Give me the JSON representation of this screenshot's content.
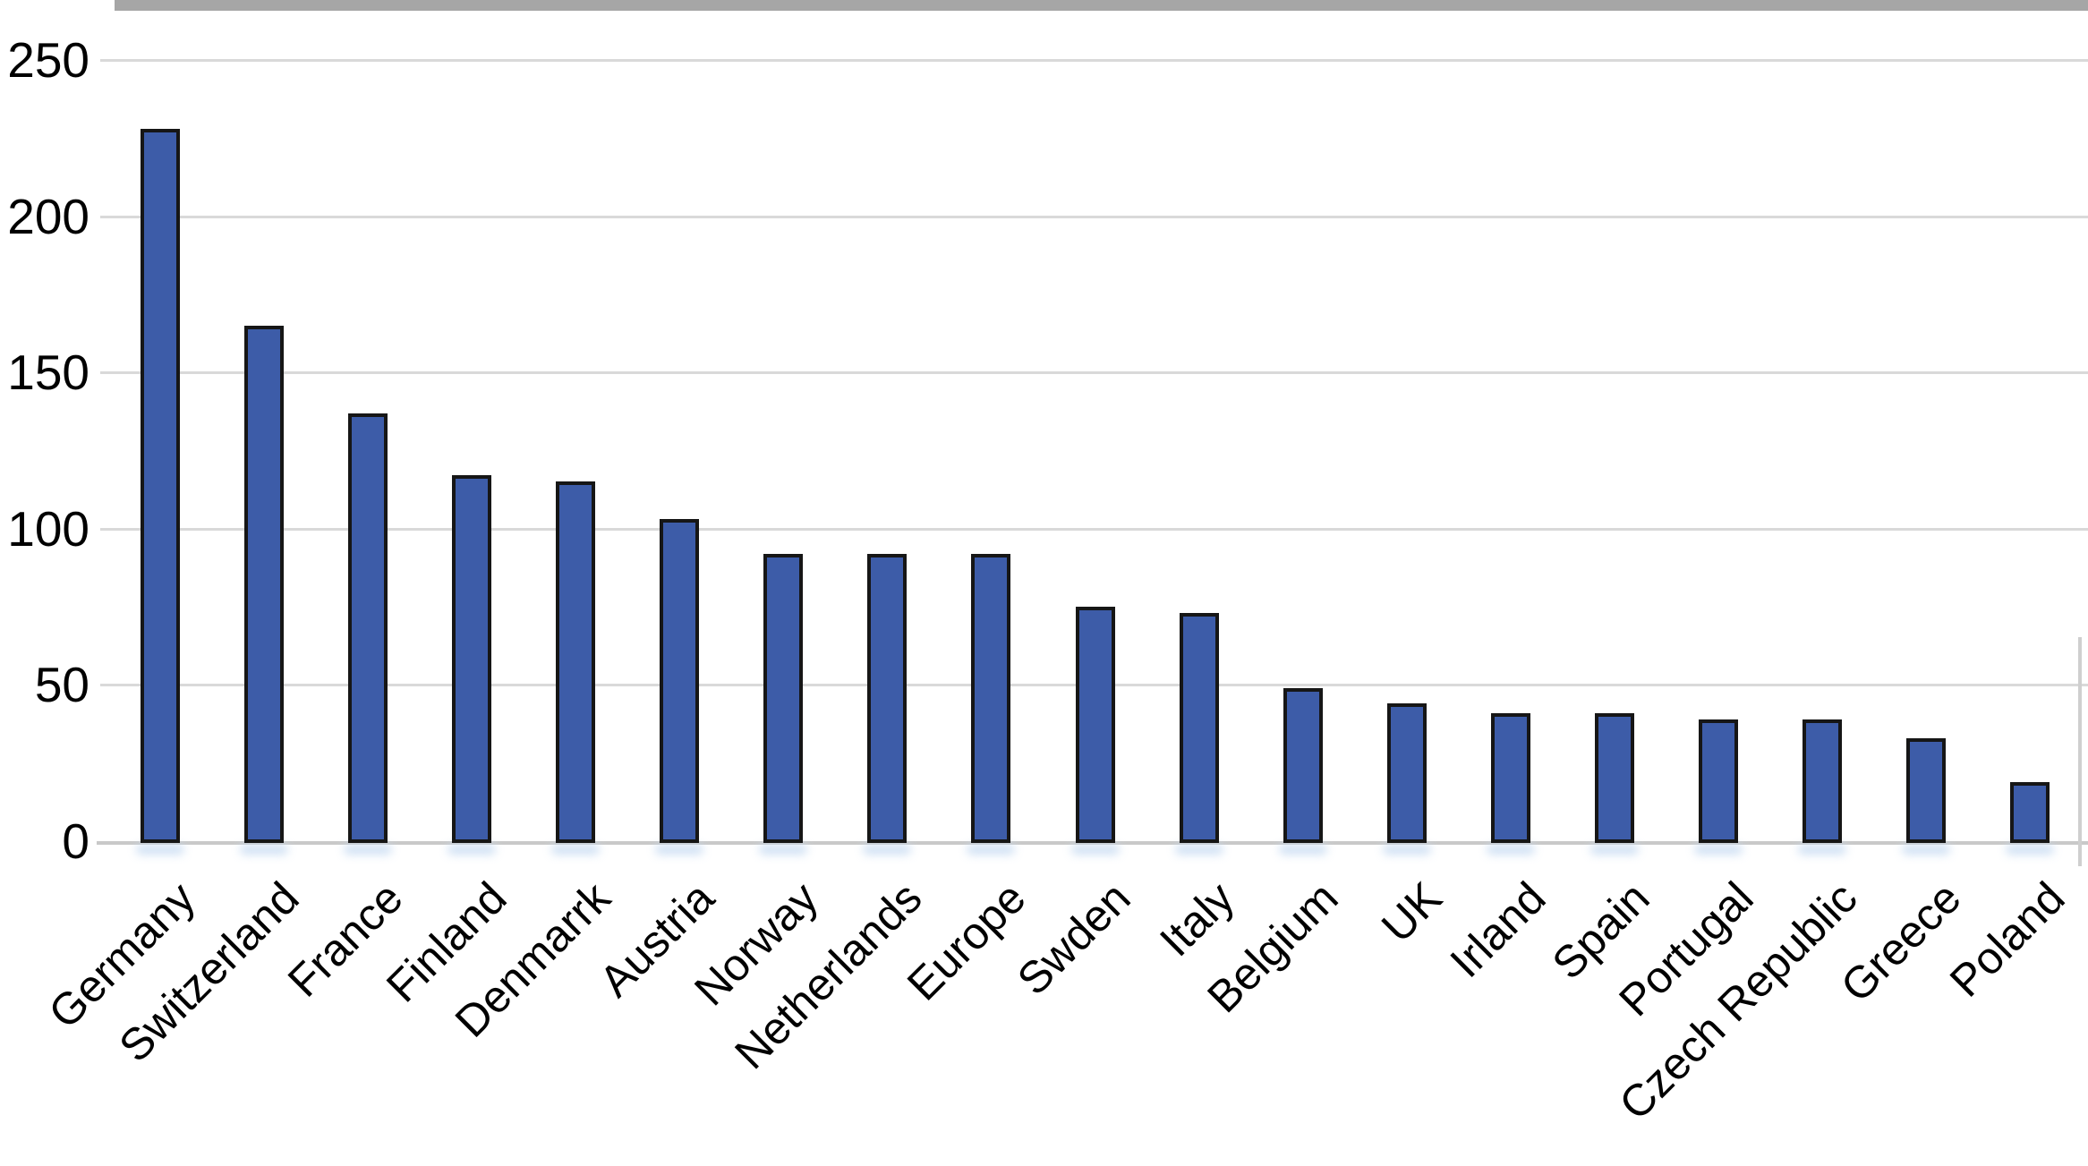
{
  "chart_data": {
    "type": "bar",
    "title": "",
    "xlabel": "",
    "ylabel": "",
    "categories": [
      "Germany",
      "Switzerland",
      "France",
      "Finland",
      "Denmarrk",
      "Austria",
      "Norway",
      "Netherlands",
      "Europe",
      "Swden",
      "Italy",
      "Belgium",
      "UK",
      "Irland",
      "Spain",
      "Portugal",
      "Czech Republic",
      "Greece",
      "Poland"
    ],
    "values": [
      228,
      165,
      137,
      117,
      115,
      103,
      92,
      92,
      92,
      75,
      73,
      49,
      44,
      41,
      41,
      39,
      39,
      33,
      19
    ],
    "ylim": [
      0,
      250
    ],
    "y_ticks": [
      0,
      50,
      100,
      150,
      200,
      250
    ],
    "grid": "horizontal",
    "legend_position": "none",
    "colors": {
      "bar_fill": "#3d5ca8",
      "bar_border": "#161616",
      "bar_reflection": "#c7dbf2",
      "gridline": "#d9d9d9",
      "axis_line": "#c9c9c9",
      "top_border": "#a6a6a6",
      "right_border": "#cfcfcf",
      "text": "#000000",
      "background": "#ffffff"
    }
  }
}
